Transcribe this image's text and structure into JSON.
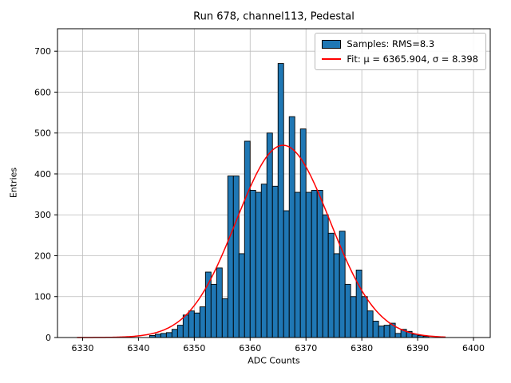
{
  "chart_data": {
    "type": "bar",
    "title": "Run 678, channel113, Pedestal",
    "xlabel": "ADC Counts",
    "ylabel": "Entries",
    "xlim": [
      6325.5,
      6403
    ],
    "ylim": [
      0,
      755
    ],
    "xticks": [
      6330,
      6340,
      6350,
      6360,
      6370,
      6380,
      6390,
      6400
    ],
    "yticks": [
      0,
      100,
      200,
      300,
      400,
      500,
      600,
      700
    ],
    "grid": true,
    "bar_color": "#1f77b4",
    "bar_edge_color": "#000000",
    "fit_color": "#ff0000",
    "bin_width": 1,
    "bins": [
      6342,
      6343,
      6344,
      6345,
      6346,
      6347,
      6348,
      6349,
      6350,
      6351,
      6352,
      6353,
      6354,
      6355,
      6356,
      6357,
      6358,
      6359,
      6360,
      6361,
      6362,
      6363,
      6364,
      6365,
      6366,
      6367,
      6368,
      6369,
      6370,
      6371,
      6372,
      6373,
      6374,
      6375,
      6376,
      6377,
      6378,
      6379,
      6380,
      6381,
      6382,
      6383,
      6384,
      6385,
      6386,
      6387,
      6388,
      6389,
      6390,
      6391
    ],
    "counts": [
      5,
      8,
      10,
      12,
      20,
      30,
      55,
      65,
      60,
      75,
      160,
      130,
      170,
      95,
      395,
      395,
      205,
      480,
      360,
      355,
      375,
      500,
      370,
      670,
      310,
      540,
      355,
      510,
      355,
      360,
      360,
      300,
      255,
      205,
      260,
      130,
      100,
      165,
      100,
      65,
      40,
      28,
      30,
      35,
      10,
      20,
      15,
      8,
      5,
      3
    ],
    "fit": {
      "mu": 6365.904,
      "sigma": 8.398,
      "amplitude": 470,
      "x_range": [
        6329,
        6395
      ]
    },
    "legend": [
      {
        "label": "Samples: RMS=8.3",
        "swatch": "patch"
      },
      {
        "label": "Fit: μ = 6365.904, σ = 8.398",
        "swatch": "line"
      }
    ]
  }
}
